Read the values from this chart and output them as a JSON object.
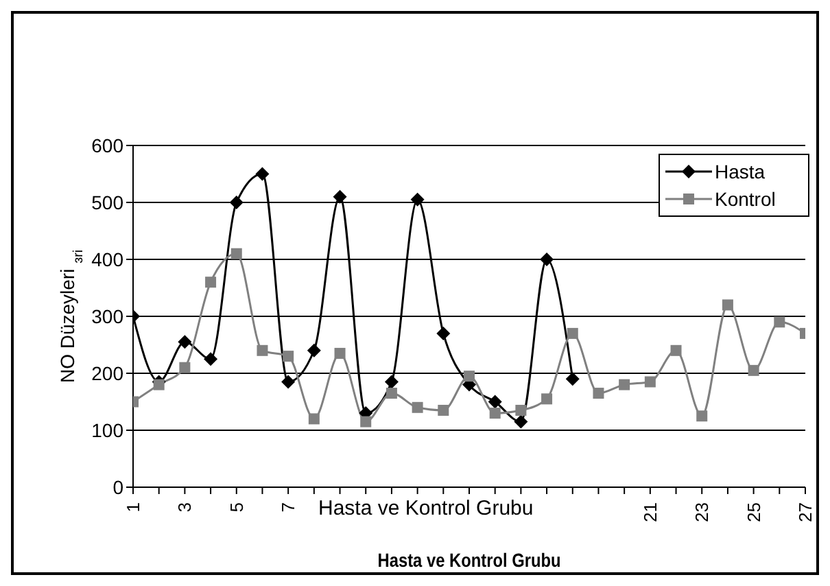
{
  "chart_data": {
    "type": "line",
    "xlabel": "Hasta ve Kontrol Grubu",
    "ylabel": "NO Düzeyleri $_{ɜri}$",
    "categories": [
      "1",
      null,
      "3",
      null,
      "5",
      null,
      "7",
      null,
      null,
      null,
      null,
      null,
      null,
      null,
      null,
      null,
      null,
      null,
      null,
      null,
      "21",
      null,
      "23",
      null,
      "25",
      null,
      "27"
    ],
    "series": [
      {
        "name": "Hasta",
        "color": "#000000",
        "marker": "diamond",
        "values": [
          300,
          185,
          255,
          225,
          500,
          550,
          185,
          240,
          510,
          130,
          185,
          505,
          270,
          180,
          150,
          115,
          400,
          190,
          null,
          null,
          null,
          null,
          null,
          null,
          null,
          null,
          null
        ]
      },
      {
        "name": "Kontrol",
        "color": "#808080",
        "marker": "square",
        "values": [
          150,
          180,
          210,
          360,
          410,
          240,
          230,
          120,
          235,
          115,
          165,
          140,
          135,
          195,
          130,
          135,
          155,
          270,
          165,
          180,
          185,
          240,
          125,
          320,
          205,
          290,
          270
        ]
      }
    ],
    "annotations": [
      "Hasta ve Kontrol Grubu"
    ],
    "ylim": [
      0,
      600
    ],
    "yticks": [
      0,
      100,
      200,
      300,
      400,
      500,
      600
    ],
    "grid": "y",
    "legend": "top right"
  }
}
